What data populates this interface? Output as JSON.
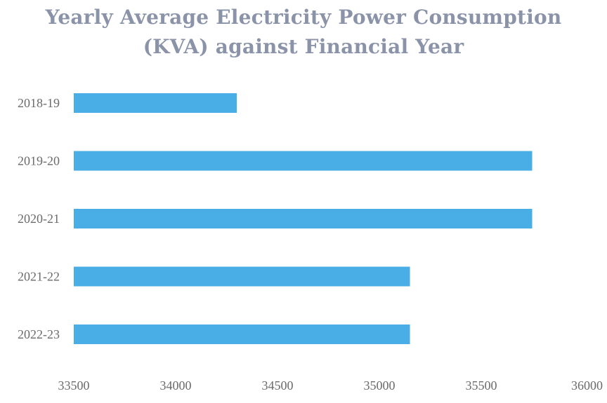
{
  "chart_data": {
    "type": "bar",
    "orientation": "horizontal",
    "title_line1": "Yearly Average Electricity Power Consumption",
    "title_line2": "(KVA) against Financial Year",
    "categories": [
      "2018-19",
      "2019-20",
      "2020-21",
      "2021-22",
      "2022-23"
    ],
    "values": [
      34300,
      35750,
      35750,
      35150,
      35150
    ],
    "xlim": [
      33500,
      36000
    ],
    "xticks": [
      33500,
      34000,
      34500,
      35000,
      35500,
      36000
    ],
    "xtick_labels": [
      "33500",
      "34000",
      "34500",
      "35000",
      "35500",
      "36000"
    ],
    "xlabel": "",
    "ylabel": "",
    "bar_color": "#4aaee6",
    "grid": false,
    "legend": "none"
  }
}
